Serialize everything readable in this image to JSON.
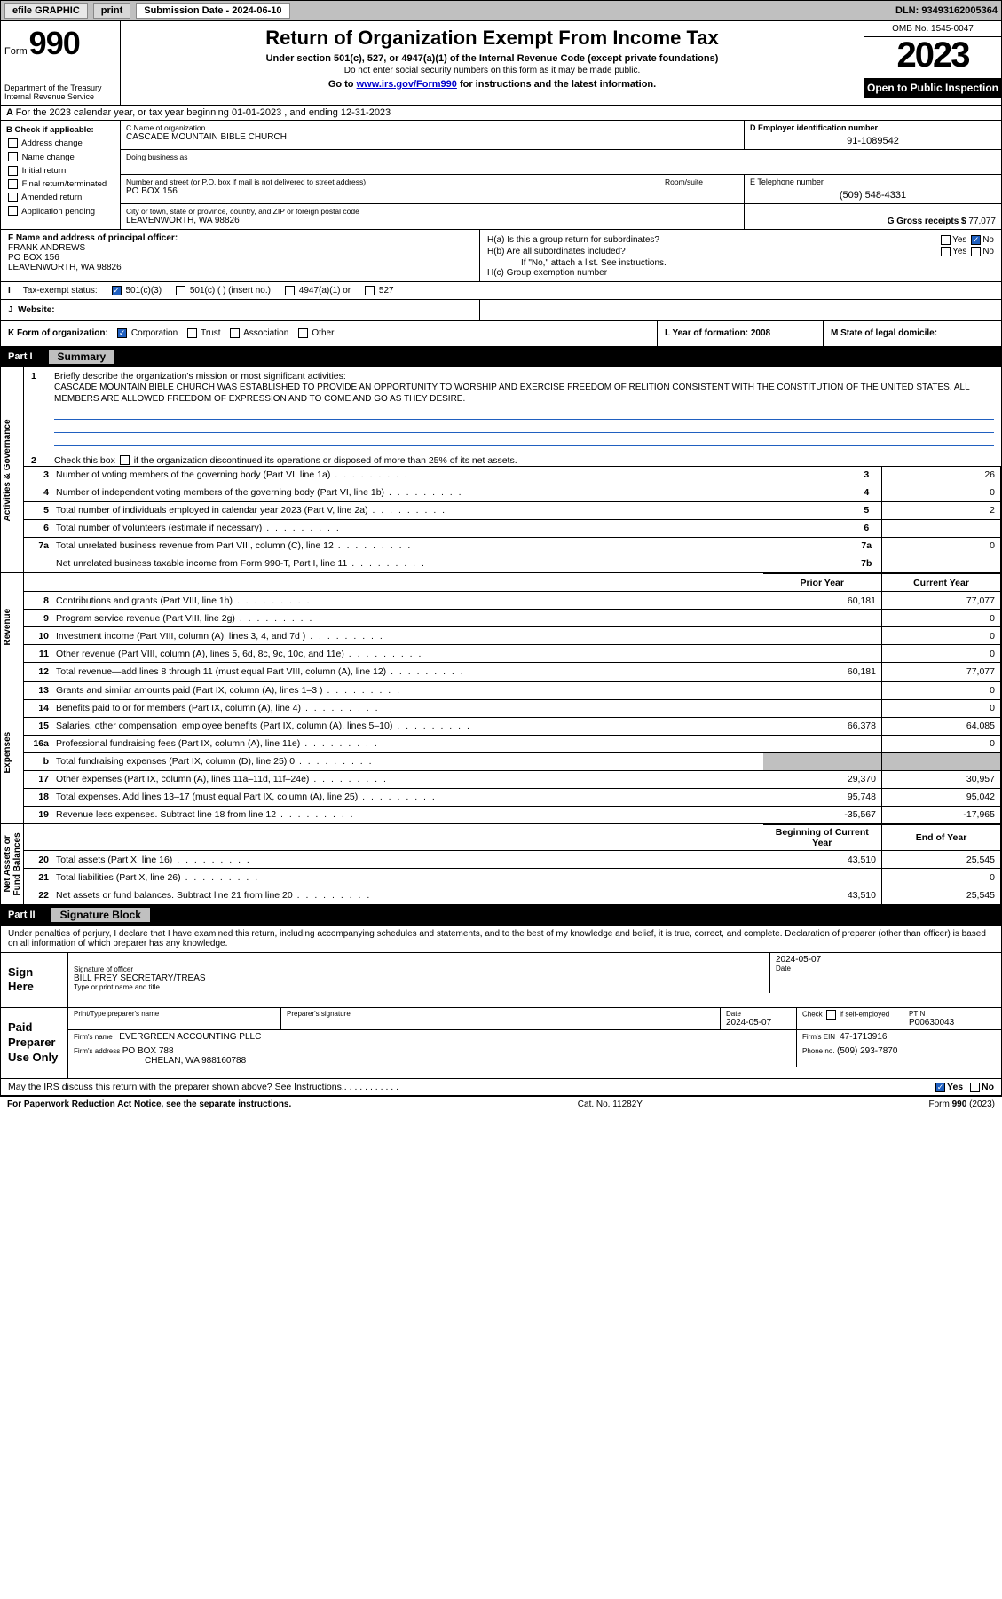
{
  "header": {
    "efile": "efile GRAPHIC",
    "print": "print",
    "sub_label": "Submission Date - 2024-06-10",
    "dln": "DLN: 93493162005364"
  },
  "top": {
    "form": "Form",
    "num": "990",
    "dept": "Department of the Treasury Internal Revenue Service",
    "title": "Return of Organization Exempt From Income Tax",
    "subtitle": "Under section 501(c), 527, or 4947(a)(1) of the Internal Revenue Code (except private foundations)",
    "ssn": "Do not enter social security numbers on this form as it may be made public.",
    "goto_pre": "Go to ",
    "goto_link": "www.irs.gov/Form990",
    "goto_post": " for instructions and the latest information.",
    "omb": "OMB No. 1545-0047",
    "year": "2023",
    "open": "Open to Public Inspection"
  },
  "rowA": "For the 2023 calendar year, or tax year beginning 01-01-2023    , and ending 12-31-2023",
  "B": {
    "label": "B Check if applicable:",
    "items": [
      "Address change",
      "Name change",
      "Initial return",
      "Final return/terminated",
      "Amended return",
      "Application pending"
    ]
  },
  "C": {
    "name_lbl": "C Name of organization",
    "name": "CASCADE MOUNTAIN BIBLE CHURCH",
    "dba_lbl": "Doing business as",
    "addr_lbl": "Number and street (or P.O. box if mail is not delivered to street address)",
    "room_lbl": "Room/suite",
    "addr": "PO BOX 156",
    "city_lbl": "City or town, state or province, country, and ZIP or foreign postal code",
    "city": "LEAVENWORTH, WA  98826"
  },
  "D": {
    "lbl": "D Employer identification number",
    "val": "91-1089542"
  },
  "E": {
    "lbl": "E Telephone number",
    "val": "(509) 548-4331"
  },
  "G": {
    "lbl": "G Gross receipts $",
    "val": "77,077"
  },
  "F": {
    "lbl": "F Name and address of principal officer:",
    "name": "FRANK ANDREWS",
    "addr1": "PO BOX 156",
    "addr2": "LEAVENWORTH, WA  98826"
  },
  "H": {
    "a": "H(a)  Is this a group return for subordinates?",
    "b": "H(b)  Are all subordinates included?",
    "b2": "If \"No,\" attach a list. See instructions.",
    "c": "H(c)  Group exemption number",
    "yes": "Yes",
    "no": "No"
  },
  "I": {
    "lbl": "Tax-exempt status:",
    "o1": "501(c)(3)",
    "o2": "501(c) (  ) (insert no.)",
    "o3": "4947(a)(1) or",
    "o4": "527"
  },
  "J": {
    "lbl": "Website:"
  },
  "K": {
    "lbl": "K Form of organization:",
    "o1": "Corporation",
    "o2": "Trust",
    "o3": "Association",
    "o4": "Other"
  },
  "L": {
    "lbl": "L Year of formation: 2008"
  },
  "M": {
    "lbl": "M State of legal domicile:"
  },
  "part1": {
    "label": "Part I",
    "title": "Summary"
  },
  "summary": {
    "q1": "Briefly describe the organization's mission or most significant activities:",
    "mission": "CASCADE MOUNTAIN BIBLE CHURCH WAS ESTABLISHED TO PROVIDE AN OPPORTUNITY TO WORSHIP AND EXERCISE FREEDOM OF RELITION CONSISTENT WITH THE CONSTITUTION OF THE UNITED STATES. ALL MEMBERS ARE ALLOWED FREEDOM OF EXPRESSION AND TO COME AND GO AS THEY DESIRE.",
    "q2": "Check this box      if the organization discontinued its operations or disposed of more than 25% of its net assets.",
    "rows_gov": [
      {
        "n": "3",
        "d": "Number of voting members of the governing body (Part VI, line 1a)",
        "b": "3",
        "v": "26"
      },
      {
        "n": "4",
        "d": "Number of independent voting members of the governing body (Part VI, line 1b)",
        "b": "4",
        "v": "0"
      },
      {
        "n": "5",
        "d": "Total number of individuals employed in calendar year 2023 (Part V, line 2a)",
        "b": "5",
        "v": "2"
      },
      {
        "n": "6",
        "d": "Total number of volunteers (estimate if necessary)",
        "b": "6",
        "v": ""
      },
      {
        "n": "7a",
        "d": "Total unrelated business revenue from Part VIII, column (C), line 12",
        "b": "7a",
        "v": "0"
      },
      {
        "n": "",
        "d": "Net unrelated business taxable income from Form 990-T, Part I, line 11",
        "b": "7b",
        "v": ""
      }
    ],
    "hdr_prior": "Prior Year",
    "hdr_curr": "Current Year",
    "rows_rev": [
      {
        "n": "8",
        "d": "Contributions and grants (Part VIII, line 1h)",
        "p": "60,181",
        "c": "77,077"
      },
      {
        "n": "9",
        "d": "Program service revenue (Part VIII, line 2g)",
        "p": "",
        "c": "0"
      },
      {
        "n": "10",
        "d": "Investment income (Part VIII, column (A), lines 3, 4, and 7d )",
        "p": "",
        "c": "0"
      },
      {
        "n": "11",
        "d": "Other revenue (Part VIII, column (A), lines 5, 6d, 8c, 9c, 10c, and 11e)",
        "p": "",
        "c": "0"
      },
      {
        "n": "12",
        "d": "Total revenue—add lines 8 through 11 (must equal Part VIII, column (A), line 12)",
        "p": "60,181",
        "c": "77,077"
      }
    ],
    "rows_exp": [
      {
        "n": "13",
        "d": "Grants and similar amounts paid (Part IX, column (A), lines 1–3 )",
        "p": "",
        "c": "0"
      },
      {
        "n": "14",
        "d": "Benefits paid to or for members (Part IX, column (A), line 4)",
        "p": "",
        "c": "0"
      },
      {
        "n": "15",
        "d": "Salaries, other compensation, employee benefits (Part IX, column (A), lines 5–10)",
        "p": "66,378",
        "c": "64,085"
      },
      {
        "n": "16a",
        "d": "Professional fundraising fees (Part IX, column (A), line 11e)",
        "p": "",
        "c": "0"
      },
      {
        "n": "b",
        "d": "Total fundraising expenses (Part IX, column (D), line 25) 0",
        "p": "shade",
        "c": "shade"
      },
      {
        "n": "17",
        "d": "Other expenses (Part IX, column (A), lines 11a–11d, 11f–24e)",
        "p": "29,370",
        "c": "30,957"
      },
      {
        "n": "18",
        "d": "Total expenses. Add lines 13–17 (must equal Part IX, column (A), line 25)",
        "p": "95,748",
        "c": "95,042"
      },
      {
        "n": "19",
        "d": "Revenue less expenses. Subtract line 18 from line 12",
        "p": "-35,567",
        "c": "-17,965"
      }
    ],
    "hdr_beg": "Beginning of Current Year",
    "hdr_end": "End of Year",
    "rows_net": [
      {
        "n": "20",
        "d": "Total assets (Part X, line 16)",
        "p": "43,510",
        "c": "25,545"
      },
      {
        "n": "21",
        "d": "Total liabilities (Part X, line 26)",
        "p": "",
        "c": "0"
      },
      {
        "n": "22",
        "d": "Net assets or fund balances. Subtract line 21 from line 20",
        "p": "43,510",
        "c": "25,545"
      }
    ]
  },
  "vbars": {
    "gov": "Activities & Governance",
    "rev": "Revenue",
    "exp": "Expenses",
    "net": "Net Assets or Fund Balances"
  },
  "part2": {
    "label": "Part II",
    "title": "Signature Block"
  },
  "sig": {
    "intro": "Under penalties of perjury, I declare that I have examined this return, including accompanying schedules and statements, and to the best of my knowledge and belief, it is true, correct, and complete. Declaration of preparer (other than officer) is based on all information of which preparer has any knowledge.",
    "here": "Sign Here",
    "officer_sig": "Signature of officer",
    "officer_name": "BILL FREY SECRETARY/TREAS",
    "officer_type": "Type or print name and title",
    "date_lbl": "Date",
    "date1": "2024-05-07",
    "paid": "Paid Preparer Use Only",
    "print_lbl": "Print/Type preparer's name",
    "prep_sig": "Preparer's signature",
    "date2": "2024-05-07",
    "check_lbl": "Check        if self-employed",
    "ptin_lbl": "PTIN",
    "ptin": "P00630043",
    "firm_name_lbl": "Firm's name",
    "firm_name": "EVERGREEN ACCOUNTING PLLC",
    "firm_ein_lbl": "Firm's EIN",
    "firm_ein": "47-1713916",
    "firm_addr_lbl": "Firm's address",
    "firm_addr1": "PO BOX 788",
    "firm_addr2": "CHELAN, WA  988160788",
    "phone_lbl": "Phone no.",
    "phone": "(509) 293-7870"
  },
  "discuss": "May the IRS discuss this return with the preparer shown above? See Instructions.",
  "footer": {
    "left": "For Paperwork Reduction Act Notice, see the separate instructions.",
    "mid": "Cat. No. 11282Y",
    "right": "Form 990 (2023)"
  }
}
